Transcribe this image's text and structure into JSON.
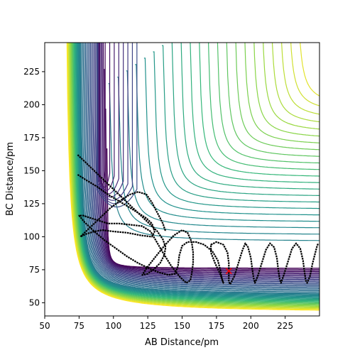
{
  "chart_data": {
    "type": "contour",
    "title": "",
    "xlabel": "AB Distance/pm",
    "ylabel": "BC Distance/pm",
    "xlim": [
      50,
      250
    ],
    "ylim": [
      40,
      247
    ],
    "xticks": [
      50,
      75,
      100,
      125,
      150,
      175,
      200,
      225
    ],
    "yticks": [
      50,
      75,
      100,
      125,
      150,
      175,
      200,
      225
    ],
    "grid": false,
    "colormap": "viridis",
    "contour_levels": 45,
    "trajectory": {
      "color": "#000000",
      "points": [
        [
          74,
          162
        ],
        [
          78,
          158
        ],
        [
          84,
          152
        ],
        [
          90,
          146
        ],
        [
          96,
          140
        ],
        [
          102,
          134
        ],
        [
          108,
          128
        ],
        [
          114,
          122
        ],
        [
          120,
          116
        ],
        [
          126,
          110
        ],
        [
          132,
          104
        ],
        [
          136,
          98
        ],
        [
          138,
          92
        ],
        [
          137,
          86
        ],
        [
          134,
          80
        ],
        [
          130,
          76
        ],
        [
          125,
          72
        ],
        [
          121,
          71
        ],
        [
          124,
          76
        ],
        [
          130,
          84
        ],
        [
          137,
          93
        ],
        [
          144,
          101
        ],
        [
          150,
          105
        ],
        [
          154,
          103
        ],
        [
          157,
          96
        ],
        [
          158,
          88
        ],
        [
          158,
          80
        ],
        [
          157,
          72
        ],
        [
          156,
          67
        ],
        [
          153,
          65
        ],
        [
          148,
          70
        ],
        [
          142,
          78
        ],
        [
          136,
          88
        ],
        [
          131,
          97
        ],
        [
          127,
          104
        ],
        [
          121,
          108
        ],
        [
          113,
          109
        ],
        [
          104,
          110
        ],
        [
          96,
          110
        ],
        [
          90,
          112
        ],
        [
          84,
          114
        ],
        [
          78,
          116
        ],
        [
          75,
          116
        ],
        [
          79,
          111
        ],
        [
          86,
          104
        ],
        [
          94,
          97
        ],
        [
          102,
          91
        ],
        [
          110,
          85
        ],
        [
          118,
          80
        ],
        [
          126,
          76
        ],
        [
          133,
          73
        ],
        [
          140,
          71
        ],
        [
          145,
          72
        ],
        [
          147,
          78
        ],
        [
          148,
          86
        ],
        [
          150,
          93
        ],
        [
          154,
          96
        ],
        [
          160,
          96
        ],
        [
          166,
          94
        ],
        [
          172,
          89
        ],
        [
          176,
          82
        ],
        [
          178,
          74
        ],
        [
          179,
          68
        ],
        [
          180,
          65
        ],
        [
          178,
          71
        ],
        [
          174,
          80
        ],
        [
          171,
          88
        ],
        [
          171,
          94
        ],
        [
          175,
          96
        ],
        [
          180,
          94
        ],
        [
          183,
          88
        ],
        [
          184,
          80
        ],
        [
          184,
          72
        ],
        [
          184,
          66
        ],
        [
          185,
          64
        ],
        [
          188,
          70
        ],
        [
          191,
          80
        ],
        [
          194,
          90
        ],
        [
          196,
          95
        ],
        [
          198,
          92
        ],
        [
          200,
          84
        ],
        [
          201,
          76
        ],
        [
          202,
          69
        ],
        [
          203,
          65
        ],
        [
          205,
          70
        ],
        [
          208,
          80
        ],
        [
          211,
          90
        ],
        [
          214,
          95
        ],
        [
          217,
          92
        ],
        [
          219,
          84
        ],
        [
          220,
          75
        ],
        [
          221,
          68
        ],
        [
          222,
          65
        ],
        [
          224,
          71
        ],
        [
          227,
          81
        ],
        [
          230,
          91
        ],
        [
          233,
          95
        ],
        [
          236,
          91
        ],
        [
          238,
          82
        ],
        [
          239,
          74
        ],
        [
          240,
          67
        ],
        [
          241,
          65
        ],
        [
          243,
          70
        ],
        [
          245,
          80
        ],
        [
          248,
          92
        ],
        [
          249,
          95
        ]
      ],
      "points_upper": [
        [
          74,
          147
        ],
        [
          80,
          143
        ],
        [
          88,
          138
        ],
        [
          96,
          132
        ],
        [
          104,
          127
        ],
        [
          112,
          122
        ],
        [
          118,
          118
        ],
        [
          124,
          114
        ],
        [
          128,
          110
        ],
        [
          130,
          104
        ],
        [
          128,
          100
        ],
        [
          120,
          101
        ],
        [
          110,
          103
        ],
        [
          100,
          104
        ],
        [
          92,
          105
        ],
        [
          86,
          104
        ],
        [
          80,
          102
        ],
        [
          76,
          100
        ],
        [
          82,
          106
        ],
        [
          90,
          114
        ],
        [
          98,
          122
        ],
        [
          106,
          128
        ],
        [
          112,
          132
        ],
        [
          118,
          134
        ],
        [
          124,
          132
        ],
        [
          128,
          126
        ],
        [
          132,
          118
        ],
        [
          136,
          110
        ],
        [
          138,
          104
        ]
      ]
    },
    "marker": {
      "symbol": "x",
      "color": "#ff0000",
      "x": 184,
      "y": 74
    }
  }
}
